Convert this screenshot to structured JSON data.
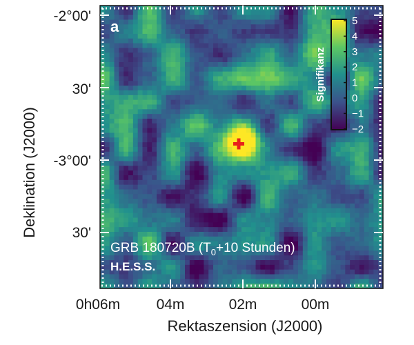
{
  "chart_data": {
    "type": "heatmap",
    "panel_label": "a",
    "xlabel": "Rektaszension (J2000)",
    "ylabel": "Deklination (J2000)",
    "x_tick_labels": [
      "0h06m",
      "04m",
      "02m",
      "00m"
    ],
    "y_tick_labels": [
      "-2°00'",
      "30'",
      "-3°00'",
      "30'"
    ],
    "colorbar": {
      "title": "Signifikanz",
      "range": [
        -2,
        5
      ],
      "ticks": [
        "5",
        "4",
        "3",
        "2",
        "1",
        "0",
        "−1",
        "−2"
      ]
    },
    "colormap": [
      "#440154",
      "#3b528b",
      "#21908d",
      "#5dc863",
      "#fde725"
    ],
    "annotation": {
      "line1": "GRB 180720B (T",
      "subscript": "0",
      "line1_end": "+10 Stunden)",
      "line2": "H.E.S.S."
    },
    "peak": {
      "ra_min": 2.0,
      "dec_deg": -2.85,
      "significance": 5
    }
  }
}
